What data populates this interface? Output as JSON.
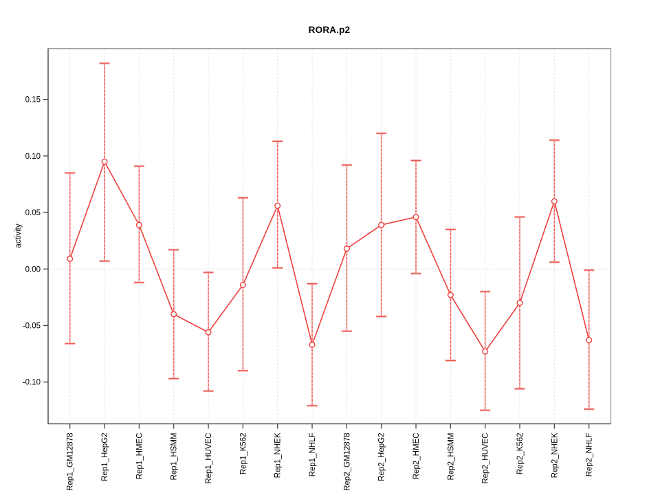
{
  "window": {
    "background": "#ffffff"
  },
  "chart_data": {
    "type": "line",
    "subtype": "point-estimates-with-error-bars",
    "title": "RORA.p2",
    "xlabel": "",
    "ylabel": "activity",
    "legend": "none",
    "categories": [
      "Rep1_GM12878",
      "Rep1_HepG2",
      "Rep1_HMEC",
      "Rep1_HSMM",
      "Rep1_HUVEC",
      "Rep1_K562",
      "Rep1_NHEK",
      "Rep1_NHLF",
      "Rep2_GM12878",
      "Rep2_HepG2",
      "Rep2_HMEC",
      "Rep2_HSMM",
      "Rep2_HUVEC",
      "Rep2_K562",
      "Rep2_NHEK",
      "Rep2_NHLF"
    ],
    "series": [
      {
        "name": "activity",
        "estimates": [
          0.009,
          0.095,
          0.039,
          -0.04,
          -0.056,
          -0.014,
          0.056,
          -0.067,
          0.018,
          0.039,
          0.046,
          -0.023,
          -0.073,
          -0.03,
          0.06,
          -0.063
        ],
        "ci_lower": [
          -0.066,
          0.007,
          -0.012,
          -0.097,
          -0.108,
          -0.09,
          0.001,
          -0.121,
          -0.055,
          -0.042,
          -0.004,
          -0.081,
          -0.125,
          -0.106,
          0.006,
          -0.124
        ],
        "ci_upper": [
          0.085,
          0.182,
          0.091,
          0.017,
          -0.003,
          0.063,
          0.113,
          -0.013,
          0.092,
          0.12,
          0.096,
          0.035,
          -0.02,
          0.046,
          0.114,
          -0.001
        ]
      }
    ],
    "yticks": {
      "values": [
        -0.1,
        -0.05,
        0.0,
        0.05,
        0.1,
        0.15
      ],
      "labels": [
        "-0.10",
        "-0.05",
        "0.00",
        "0.05",
        "0.10",
        "0.15"
      ]
    },
    "ylim": [
      -0.137,
      0.195
    ],
    "grid": {
      "vertical_dotted_per_category": true,
      "horizontal_dotted_zero_line": true
    },
    "colors": {
      "line": "#ee3f3b",
      "marker": "#ee3f3b",
      "marker_fill": "#ffffff",
      "stem_light": "#f7b3b1",
      "stem_dash": "#e84a45",
      "cap_light": "#f5a3a0",
      "cap_core": "#ec534f",
      "grid": "#e2e2e2",
      "zero_line": "#d9d9d9",
      "box": "#999999",
      "axis": "#444444",
      "text": "#000000"
    }
  }
}
